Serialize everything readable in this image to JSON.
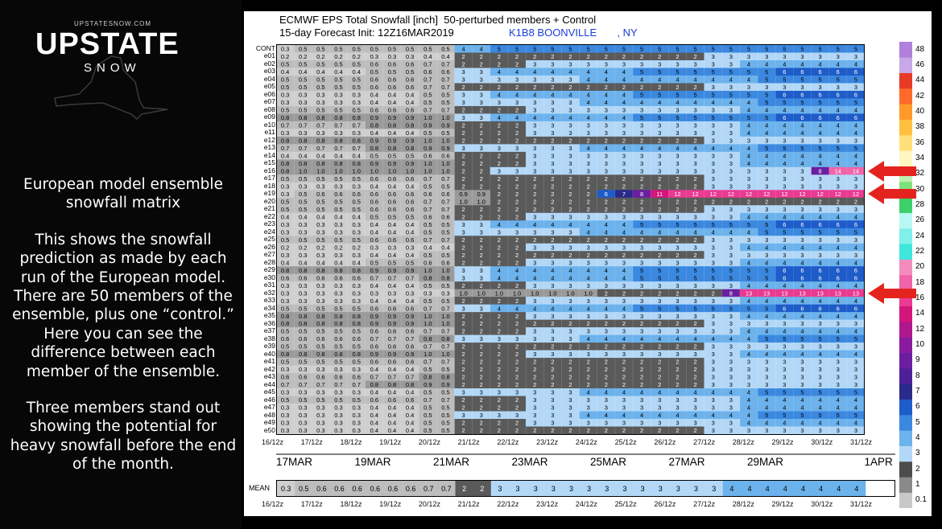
{
  "brand": {
    "url": "UPSTATESNOW.COM",
    "name": "UPSTATE",
    "sub": "SNOW"
  },
  "description": {
    "heading": "European model ensemble snowfall matrix",
    "para1": "This shows the snowfall prediction as made by each run of the European model. There are 50 members of the ensemble, plus one “control.” Here you can see the difference between each member of the ensemble.",
    "para2": "Three members stand out showing the potential for heavy snowfall before the end of the month."
  },
  "chart_header": {
    "line1": "ECMWF EPS Total Snowfall [inch]  50-perturbed members + Control",
    "line2": "15-day Forecast Init: 12Z16MAR2019",
    "station": "K1B8 BOONVILLE       , NY"
  },
  "chart_data": {
    "type": "heatmap",
    "title": "ECMWF EPS Total Snowfall [inch]  50-perturbed members + Control",
    "init": "12Z16MAR2019",
    "x_ticks": [
      "16/12z",
      "17/12z",
      "18/12z",
      "19/12z",
      "20/12z",
      "21/12z",
      "22/12z",
      "23/12z",
      "24/12z",
      "25/12z",
      "26/12z",
      "27/12z",
      "28/12z",
      "29/12z",
      "30/12z",
      "31/12z"
    ],
    "date_labels": [
      "17MAR",
      "19MAR",
      "21MAR",
      "23MAR",
      "25MAR",
      "27MAR",
      "29MAR",
      "1APR"
    ],
    "members": [
      "CONT",
      "e01",
      "e02",
      "e03",
      "e04",
      "e05",
      "e06",
      "e07",
      "e08",
      "e09",
      "e10",
      "e11",
      "e12",
      "e13",
      "e14",
      "e15",
      "e16",
      "e17",
      "e18",
      "e19",
      "e20",
      "e21",
      "e22",
      "e23",
      "e24",
      "e25",
      "e26",
      "e27",
      "e28",
      "e29",
      "e30",
      "e31",
      "e32",
      "e33",
      "e34",
      "e35",
      "e36",
      "e37",
      "e38",
      "e39",
      "e40",
      "e41",
      "e42",
      "e43",
      "e44",
      "e45",
      "e46",
      "e47",
      "e48",
      "e49",
      "e50"
    ],
    "highlighted_members": [
      "e16",
      "e19",
      "e32"
    ],
    "colorbar_ticks": [
      "0.1",
      "1",
      "2",
      "3",
      "4",
      "5",
      "6",
      "7",
      "8",
      "9",
      "10",
      "12",
      "14",
      "16",
      "18",
      "20",
      "22",
      "24",
      "26",
      "28",
      "30",
      "32",
      "34",
      "36",
      "38",
      "40",
      "42",
      "44",
      "46",
      "48"
    ],
    "colorbar_colors": [
      "#c8c8c8",
      "#8a8a8a",
      "#4c4c4c",
      "#b3d8f7",
      "#6cb2ec",
      "#3b88e0",
      "#1d5cc9",
      "#2a2a8a",
      "#4f1f9a",
      "#6b1fa0",
      "#8a1a9e",
      "#b0188e",
      "#d4157c",
      "#ea3a92",
      "#ef64aa",
      "#f38cbc",
      "#3ee6dc",
      "#7ff0ea",
      "#b8f8f4",
      "#3bd06a",
      "#7ce27a",
      "#bdf0b2",
      "#fff6c0",
      "#ffe07a",
      "#ffc040",
      "#ff9a2a",
      "#ff6a2a",
      "#e83a24",
      "#c8a8e8",
      "#b080dc"
    ],
    "mean": {
      "label": "MEAN",
      "values": [
        0.3,
        0.5,
        0.6,
        0.6,
        0.6,
        0.6,
        0.6,
        0.6,
        0.7,
        0.7,
        2,
        2,
        3,
        3,
        3,
        3,
        3,
        3,
        3,
        3,
        3,
        3,
        3,
        3,
        3,
        4,
        4,
        4,
        4,
        4,
        4,
        4,
        4
      ]
    },
    "cell_values": {
      "CONT": [
        0.3,
        0.5,
        0.5,
        0.5,
        0.5,
        0.5,
        0.5,
        0.5,
        0.5,
        0.5,
        4,
        4,
        5,
        5,
        5,
        5,
        5,
        5,
        5,
        5,
        5,
        5,
        5,
        5,
        5,
        5,
        5,
        5,
        5,
        5,
        5,
        5,
        5
      ],
      "e16": [
        0.8,
        1,
        1,
        1,
        1,
        1,
        1,
        1,
        1,
        1,
        2,
        2,
        3,
        3,
        3,
        3,
        3,
        3,
        3,
        3,
        3,
        3,
        3,
        3,
        3,
        3,
        3,
        3,
        3,
        3,
        8,
        14,
        14
      ],
      "e19": [
        0.3,
        0.5,
        0.6,
        0.6,
        0.6,
        0.6,
        0.6,
        0.6,
        0.6,
        0.6,
        0.9,
        0.9,
        2,
        2,
        2,
        2,
        2,
        2,
        6,
        7,
        8,
        11,
        12,
        12,
        12,
        12,
        12,
        12,
        12,
        12,
        12,
        12,
        12
      ],
      "e32": [
        0.3,
        0.3,
        0.3,
        0.3,
        0.3,
        0.3,
        0.3,
        0.3,
        0.3,
        0.3,
        1,
        1,
        1,
        1,
        1,
        1,
        1,
        1,
        2,
        2,
        2,
        2,
        2,
        2,
        2,
        8,
        13,
        13,
        13,
        13,
        13,
        13,
        13
      ]
    }
  }
}
